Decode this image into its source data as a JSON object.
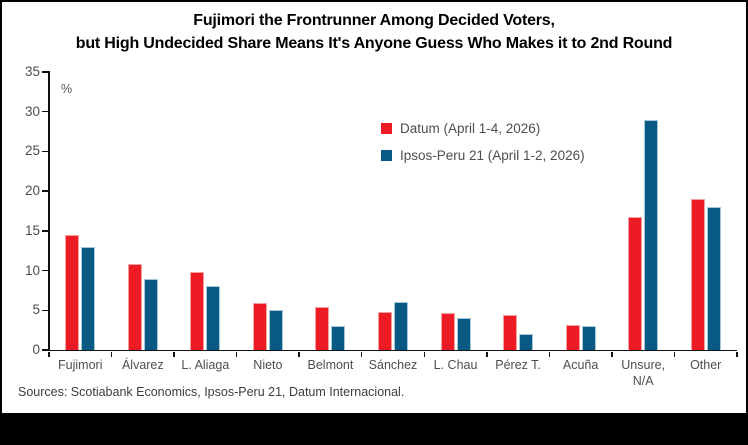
{
  "title": {
    "line1": "Fujimori the Frontrunner Among Decided Voters,",
    "line2": "but High Undecided Share Means It's Anyone Guess Who Makes it to 2nd Round"
  },
  "chart_data": {
    "type": "bar",
    "categories": [
      "Fujimori",
      "Álvarez",
      "L. Aliaga",
      "Nieto",
      "Belmont",
      "Sánchez",
      "L. Chau",
      "Pérez T.",
      "Acuña",
      "Unsure,\nN/A",
      "Other"
    ],
    "series": [
      {
        "name": "Datum (April 1-4, 2026)",
        "color": "#ED1B24",
        "edge_color": "#F6A0A4",
        "values": [
          14.5,
          10.8,
          9.8,
          5.9,
          5.4,
          4.8,
          4.6,
          4.4,
          3.2,
          16.7,
          19
        ]
      },
      {
        "name": "Ipsos-Peru 21 (April 1-2, 2026)",
        "color": "#085A84",
        "edge_color": "#A6C8D8",
        "values": [
          13,
          9,
          8,
          5,
          3,
          6,
          4,
          2,
          3,
          29,
          18
        ]
      }
    ],
    "title": "Fujimori the Frontrunner Among Decided Voters, but High Undecided Share Means It's Anyone Guess Who Makes it to 2nd Round",
    "xlabel": "",
    "ylabel": "%",
    "ylim": [
      0,
      35
    ],
    "ytick_step": 5,
    "grid": false,
    "legend_position": "upper-middle-right"
  },
  "footer": {
    "sources": "Sources: Scotiabank Economics, Ipsos-Peru 21, Datum Internacional."
  }
}
